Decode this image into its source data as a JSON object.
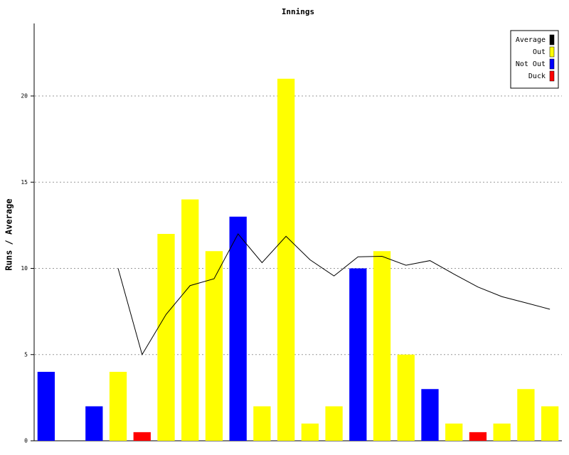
{
  "chart_data": {
    "type": "bar",
    "title": "Innings",
    "y_label": "Runs / Average",
    "series": [
      {
        "name": "Average",
        "color": "#000000",
        "kind": "line",
        "values": [
          null,
          null,
          null,
          10,
          5,
          7.33,
          9,
          9.4,
          12,
          10.33,
          11.86,
          10.5,
          9.56,
          10.67,
          10.7,
          10.18,
          10.45,
          9.67,
          8.92,
          8.36,
          8,
          7.63
        ]
      },
      {
        "name": "Out",
        "color": "#ffff00",
        "kind": "bar",
        "values": [
          null,
          null,
          null,
          4,
          null,
          12,
          14,
          11,
          null,
          2,
          21,
          1,
          2,
          null,
          11,
          5,
          null,
          1,
          null,
          1,
          3,
          2
        ]
      },
      {
        "name": "Not Out",
        "color": "#0000ff",
        "kind": "bar",
        "values": [
          4,
          0,
          2,
          null,
          null,
          null,
          null,
          null,
          13,
          null,
          null,
          null,
          null,
          10,
          null,
          null,
          3,
          null,
          null,
          null,
          null,
          null
        ]
      },
      {
        "name": "Duck",
        "color": "#ff0000",
        "kind": "bar",
        "values": [
          null,
          null,
          null,
          null,
          0.5,
          null,
          null,
          null,
          null,
          null,
          null,
          null,
          null,
          null,
          null,
          null,
          null,
          null,
          0.5,
          null,
          null,
          null
        ]
      }
    ],
    "ylim": [
      0,
      24
    ],
    "yticks": [
      0,
      5,
      10,
      15,
      20
    ],
    "grid": true,
    "legend": "top-right"
  }
}
